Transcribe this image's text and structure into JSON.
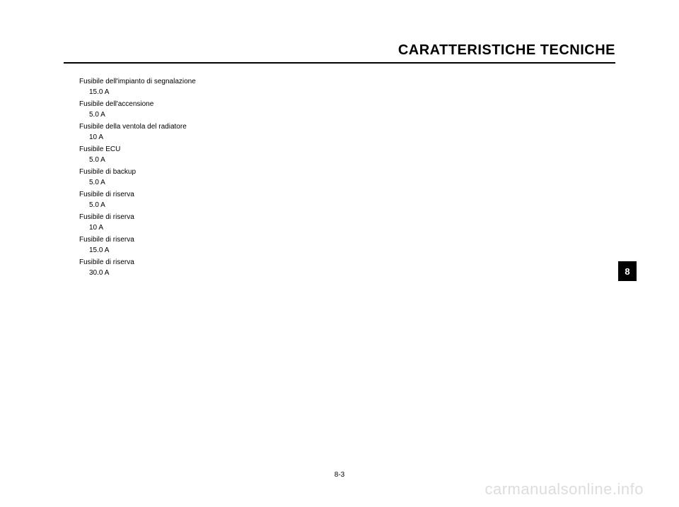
{
  "header": {
    "title": "CARATTERISTICHE TECNICHE"
  },
  "specs": [
    {
      "label": "Fusibile dell'impianto di segnalazione",
      "value": "15.0 A"
    },
    {
      "label": "Fusibile dell'accensione",
      "value": "5.0 A"
    },
    {
      "label": "Fusibile della ventola del radiatore",
      "value": "10 A"
    },
    {
      "label": "Fusibile ECU",
      "value": "5.0 A"
    },
    {
      "label": "Fusibile di backup",
      "value": "5.0 A"
    },
    {
      "label": "Fusibile di riserva",
      "value": "5.0 A"
    },
    {
      "label": "Fusibile di riserva",
      "value": "10 A"
    },
    {
      "label": "Fusibile di riserva",
      "value": "15.0 A"
    },
    {
      "label": "Fusibile di riserva",
      "value": "30.0 A"
    }
  ],
  "page_indicator": "8",
  "page_number": "8-3",
  "watermark": "carmanualsonline.info",
  "styling": {
    "header_fontsize": 20,
    "header_fontweight": "bold",
    "spec_fontsize": 10,
    "page_indicator_bg": "#000000",
    "page_indicator_color": "#ffffff",
    "watermark_color": "#dddddd",
    "background_color": "#ffffff",
    "border_color": "#000000"
  }
}
